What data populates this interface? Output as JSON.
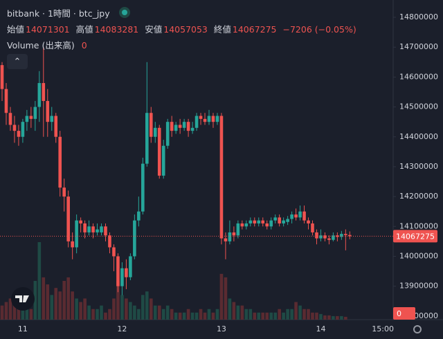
{
  "chart_data": {
    "type": "candlestick",
    "title": "bitbank · 1時間 · btc_jpy",
    "ohlc_labels": [
      "始値",
      "高値",
      "安値",
      "終値"
    ],
    "change": "−7206 (−0.05%)",
    "up_color": "#26a69a",
    "down_color": "#ef5350",
    "categories": [
      null,
      null,
      null,
      null,
      null,
      "11",
      null,
      null,
      null,
      null,
      null,
      null,
      null,
      null,
      null,
      null,
      null,
      null,
      null,
      null,
      null,
      null,
      null,
      null,
      null,
      null,
      null,
      null,
      null,
      "12",
      null,
      null,
      null,
      null,
      null,
      null,
      null,
      null,
      null,
      null,
      null,
      null,
      null,
      null,
      null,
      null,
      null,
      null,
      null,
      null,
      null,
      null,
      null,
      "13",
      null,
      null,
      null,
      null,
      null,
      null,
      null,
      null,
      null,
      null,
      null,
      null,
      null,
      null,
      null,
      null,
      null,
      null,
      null,
      null,
      null,
      null,
      null,
      "14",
      null,
      null,
      null,
      null,
      null,
      null,
      null,
      null,
      null,
      null,
      null,
      null,
      null,
      null,
      "15:00",
      null,
      null
    ],
    "open": [
      14640000,
      14560000,
      14480000,
      14440000,
      14420000,
      14400000,
      14450000,
      14470000,
      14460000,
      14500000,
      14580000,
      14520000,
      14450000,
      14470000,
      14400000,
      14230000,
      14200000,
      14050000,
      14030000,
      14120000,
      14110000,
      14080000,
      14100000,
      14080000,
      14080000,
      14100000,
      14070000,
      14030000,
      14000000,
      13900000,
      13960000,
      13930000,
      14000000,
      14120000,
      14150000,
      14310000,
      14480000,
      14400000,
      14430000,
      14270000,
      14370000,
      14450000,
      14420000,
      14440000,
      14430000,
      14450000,
      14420000,
      14430000,
      14470000,
      14460000,
      14450000,
      14470000,
      14450000,
      14470000,
      14060000,
      14050000,
      14080000,
      14070000,
      14110000,
      14100000,
      14110000,
      14120000,
      14110000,
      14120000,
      14110000,
      14100000,
      14120000,
      14130000,
      14110000,
      14115000,
      14125000,
      14140000,
      14130000,
      14150000,
      14120000,
      14110000,
      14080000,
      14060000,
      14070000,
      14060000,
      14055000,
      14070000,
      14065000,
      14075000,
      14071301,
      null,
      null,
      null,
      null,
      null,
      null,
      null,
      null,
      null,
      null
    ],
    "high": [
      14650000,
      14580000,
      14500000,
      14470000,
      14440000,
      14460000,
      14490000,
      14500000,
      14520000,
      14620000,
      14700000,
      14560000,
      14500000,
      14480000,
      14420000,
      14260000,
      14220000,
      14080000,
      14140000,
      14130000,
      14120000,
      14120000,
      14110000,
      14110000,
      14110000,
      14110000,
      14080000,
      14040000,
      14010000,
      13980000,
      13990000,
      14010000,
      14140000,
      14200000,
      14330000,
      14650000,
      14500000,
      14450000,
      14440000,
      14390000,
      14460000,
      14470000,
      14450000,
      14460000,
      14460000,
      14460000,
      14450000,
      14480000,
      14480000,
      14480000,
      14490000,
      14480000,
      14480000,
      14480000,
      14080000,
      14120000,
      14100000,
      14120000,
      14120000,
      14120000,
      14130000,
      14130000,
      14130000,
      14130000,
      14120000,
      14130000,
      14140000,
      14140000,
      14130000,
      14135000,
      14150000,
      14160000,
      14170000,
      14170000,
      14130000,
      14120000,
      14090000,
      14090000,
      14080000,
      14070000,
      14080000,
      14080000,
      14085000,
      14090000,
      14083281,
      null,
      null,
      null,
      null,
      null,
      null,
      null,
      null,
      null,
      null
    ],
    "low": [
      14520000,
      14440000,
      14420000,
      14380000,
      14370000,
      14380000,
      14420000,
      14430000,
      14420000,
      14450000,
      14400000,
      14400000,
      14420000,
      14380000,
      14200000,
      14150000,
      14030000,
      13990000,
      14010000,
      14080000,
      14060000,
      14070000,
      14060000,
      14070000,
      14070000,
      14050000,
      14010000,
      13950000,
      13880000,
      13870000,
      13890000,
      13920000,
      13990000,
      14100000,
      14140000,
      14300000,
      14380000,
      14380000,
      14260000,
      14260000,
      14360000,
      14400000,
      14410000,
      14410000,
      14420000,
      14400000,
      14410000,
      14420000,
      14440000,
      14440000,
      14440000,
      14430000,
      14440000,
      14040000,
      13990000,
      14040000,
      14050000,
      14060000,
      14090000,
      14090000,
      14100000,
      14100000,
      14100000,
      14100000,
      14090000,
      14090000,
      14110000,
      14100000,
      14100000,
      14105000,
      14110000,
      14120000,
      14120000,
      14110000,
      14090000,
      14070000,
      14040000,
      14050000,
      14050000,
      14040000,
      14050000,
      14050000,
      14055000,
      14020000,
      14057053,
      null,
      null,
      null,
      null,
      null,
      null,
      null,
      null,
      null,
      null
    ],
    "close": [
      14560000,
      14480000,
      14440000,
      14420000,
      14400000,
      14450000,
      14470000,
      14460000,
      14500000,
      14580000,
      14520000,
      14450000,
      14470000,
      14400000,
      14230000,
      14200000,
      14050000,
      14030000,
      14120000,
      14110000,
      14080000,
      14100000,
      14080000,
      14090000,
      14100000,
      14070000,
      14030000,
      14000000,
      13900000,
      13960000,
      13930000,
      14000000,
      14120000,
      14150000,
      14310000,
      14480000,
      14400000,
      14430000,
      14270000,
      14370000,
      14450000,
      14420000,
      14440000,
      14430000,
      14450000,
      14420000,
      14430000,
      14470000,
      14460000,
      14450000,
      14470000,
      14450000,
      14470000,
      14060000,
      14050000,
      14080000,
      14070000,
      14110000,
      14100000,
      14110000,
      14120000,
      14110000,
      14120000,
      14110000,
      14100000,
      14120000,
      14130000,
      14110000,
      14120000,
      14125000,
      14140000,
      14130000,
      14150000,
      14120000,
      14110000,
      14080000,
      14060000,
      14070000,
      14060000,
      14055000,
      14070000,
      14065000,
      14075000,
      14071000,
      14067275,
      null,
      null,
      null,
      null,
      null,
      null,
      null,
      null,
      null,
      null
    ],
    "volume": {
      "name": "Volume (出来高)",
      "up_color": "#1f4a45",
      "down_color": "#5a2b31",
      "values": [
        20,
        25,
        30,
        35,
        20,
        15,
        20,
        15,
        55,
        110,
        60,
        50,
        35,
        45,
        40,
        55,
        60,
        40,
        30,
        25,
        30,
        20,
        15,
        15,
        20,
        10,
        15,
        30,
        55,
        35,
        30,
        25,
        20,
        15,
        35,
        40,
        30,
        20,
        20,
        15,
        20,
        15,
        10,
        10,
        10,
        15,
        10,
        10,
        15,
        10,
        15,
        10,
        15,
        65,
        60,
        30,
        25,
        20,
        20,
        15,
        15,
        10,
        10,
        10,
        10,
        10,
        10,
        15,
        10,
        15,
        15,
        25,
        20,
        15,
        15,
        10,
        10,
        8,
        6,
        6,
        5,
        5,
        5,
        4,
        0,
        null,
        null,
        null,
        null,
        null,
        null,
        null,
        null,
        null,
        null
      ]
    },
    "ylim": [
      13788000,
      14858000
    ],
    "yticks": [
      13800000,
      13900000,
      14000000,
      14100000,
      14200000,
      14300000,
      14400000,
      14500000,
      14600000,
      14700000,
      14800000
    ],
    "grid": false
  }
}
